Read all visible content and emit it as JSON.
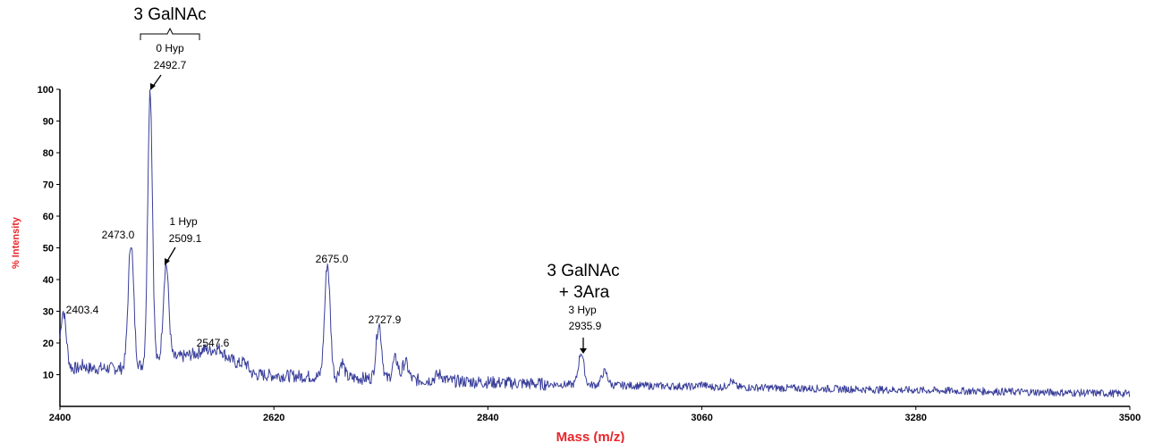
{
  "chart_data": {
    "type": "line",
    "title": "",
    "xlabel": "Mass (m/z)",
    "ylabel": "% Intensity",
    "xlim": [
      2400,
      3500
    ],
    "ylim": [
      0,
      100
    ],
    "x_ticks": [
      "2400",
      "2620",
      "2840",
      "3060",
      "3280",
      "3500"
    ],
    "y_ticks": [
      "10",
      "20",
      "30",
      "40",
      "50",
      "60",
      "70",
      "80",
      "90",
      "100"
    ],
    "grid": false,
    "line_color": "#3a3f9a",
    "label_color": "#e8262b",
    "peaks": [
      {
        "x": 2403.4,
        "y": 30
      },
      {
        "x": 2473.0,
        "y": 52
      },
      {
        "x": 2492.7,
        "y": 100
      },
      {
        "x": 2509.1,
        "y": 45
      },
      {
        "x": 2547.6,
        "y": 18
      },
      {
        "x": 2675.0,
        "y": 45
      },
      {
        "x": 2727.9,
        "y": 26
      },
      {
        "x": 2935.9,
        "y": 17
      }
    ],
    "annotations": {
      "group1_title": "3 GalNAc",
      "p2492_hyp": "0 Hyp",
      "p2492_mass": "2492.7",
      "p2509_hyp": "1 Hyp",
      "p2509_mass": "2509.1",
      "p2473": "2473.0",
      "p2403": "2403.4",
      "p2547": "2547.6",
      "p2675": "2675.0",
      "p2727": "2727.9",
      "group2_line1": "3 GalNAc",
      "group2_line2": "+ 3Ara",
      "p2935_hyp": "3 Hyp",
      "p2935_mass": "2935.9"
    }
  }
}
